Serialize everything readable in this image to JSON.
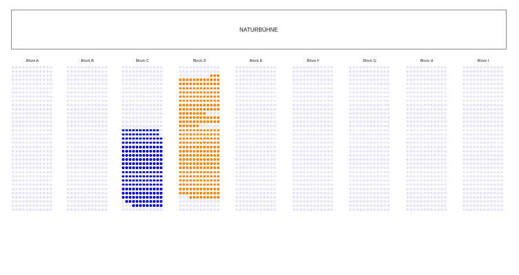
{
  "stage": {
    "label": "NATURBÜHNE"
  },
  "blocks": [
    {
      "id": "A",
      "label": "Block A",
      "cols": 12
    },
    {
      "id": "B",
      "label": "Block B",
      "cols": 12
    },
    {
      "id": "C",
      "label": "Block C",
      "cols": 12
    },
    {
      "id": "D",
      "label": "Block D",
      "cols": 12
    },
    {
      "id": "E",
      "label": "Block E",
      "cols": 12
    },
    {
      "id": "F",
      "label": "Block F",
      "cols": 12
    },
    {
      "id": "G",
      "label": "Block G",
      "cols": 12
    },
    {
      "id": "H",
      "label": "Block H",
      "cols": 12
    },
    {
      "id": "I",
      "label": "Block I",
      "cols": 12
    }
  ],
  "rows_per_block": 35,
  "colors": {
    "unavailable": "#e6e6f8",
    "available_blue": "#0000c8",
    "available_orange": "#f0890e"
  },
  "available_seats": {
    "C": {
      "color": "blue",
      "rows": [
        {
          "row": 15,
          "from": 0,
          "to": 10
        },
        {
          "row": 16,
          "from": 0,
          "to": 10
        },
        {
          "row": 17,
          "from": 0,
          "to": 11
        },
        {
          "row": 18,
          "from": 0,
          "to": 11
        },
        {
          "row": 19,
          "from": 0,
          "to": 11
        },
        {
          "row": 20,
          "from": 0,
          "to": 11
        },
        {
          "row": 21,
          "from": 0,
          "to": 11
        },
        {
          "row": 22,
          "from": 0,
          "to": 11
        },
        {
          "row": 23,
          "from": 0,
          "to": 11
        },
        {
          "row": 24,
          "from": 0,
          "to": 11
        },
        {
          "row": 25,
          "from": 0,
          "to": 11
        },
        {
          "row": 26,
          "from": 0,
          "to": 11
        },
        {
          "row": 27,
          "from": 0,
          "to": 11
        },
        {
          "row": 28,
          "from": 0,
          "to": 11
        },
        {
          "row": 29,
          "from": 0,
          "to": 11
        },
        {
          "row": 30,
          "from": 0,
          "to": 11
        },
        {
          "row": 31,
          "from": 0,
          "to": 11
        },
        {
          "row": 32,
          "from": 1,
          "to": 11
        },
        {
          "row": 33,
          "from": 3,
          "to": 11
        }
      ]
    },
    "D": {
      "color": "orange",
      "rows": [
        {
          "row": 2,
          "from": 9,
          "to": 11
        },
        {
          "row": 3,
          "from": 0,
          "to": 11
        },
        {
          "row": 4,
          "from": 0,
          "to": 11
        },
        {
          "row": 5,
          "from": 0,
          "to": 11
        },
        {
          "row": 6,
          "from": 0,
          "to": 11
        },
        {
          "row": 7,
          "from": 0,
          "to": 11
        },
        {
          "row": 8,
          "from": 0,
          "to": 11
        },
        {
          "row": 9,
          "from": 0,
          "to": 11
        },
        {
          "row": 10,
          "from": 0,
          "to": 11
        },
        {
          "row": 11,
          "from": 0,
          "to": 7
        },
        {
          "row": 12,
          "from": 0,
          "to": 11
        },
        {
          "row": 13,
          "from": 0,
          "to": 11
        },
        {
          "row": 14,
          "from": 0,
          "to": 5
        },
        {
          "row": 15,
          "from": 0,
          "to": 11
        },
        {
          "row": 16,
          "from": 0,
          "to": 11
        },
        {
          "row": 17,
          "from": 0,
          "to": 11
        },
        {
          "row": 18,
          "from": 0,
          "to": 11
        },
        {
          "row": 19,
          "from": 0,
          "to": 11
        },
        {
          "row": 20,
          "from": 0,
          "to": 11
        },
        {
          "row": 21,
          "from": 0,
          "to": 11
        },
        {
          "row": 22,
          "from": 0,
          "to": 11
        },
        {
          "row": 23,
          "from": 0,
          "to": 11
        },
        {
          "row": 24,
          "from": 0,
          "to": 11
        },
        {
          "row": 25,
          "from": 0,
          "to": 11
        },
        {
          "row": 26,
          "from": 0,
          "to": 11
        },
        {
          "row": 27,
          "from": 0,
          "to": 11
        },
        {
          "row": 28,
          "from": 0,
          "to": 11
        },
        {
          "row": 29,
          "from": 0,
          "to": 11
        },
        {
          "row": 30,
          "from": 0,
          "to": 11
        },
        {
          "row": 31,
          "from": 3,
          "to": 11
        }
      ]
    }
  }
}
